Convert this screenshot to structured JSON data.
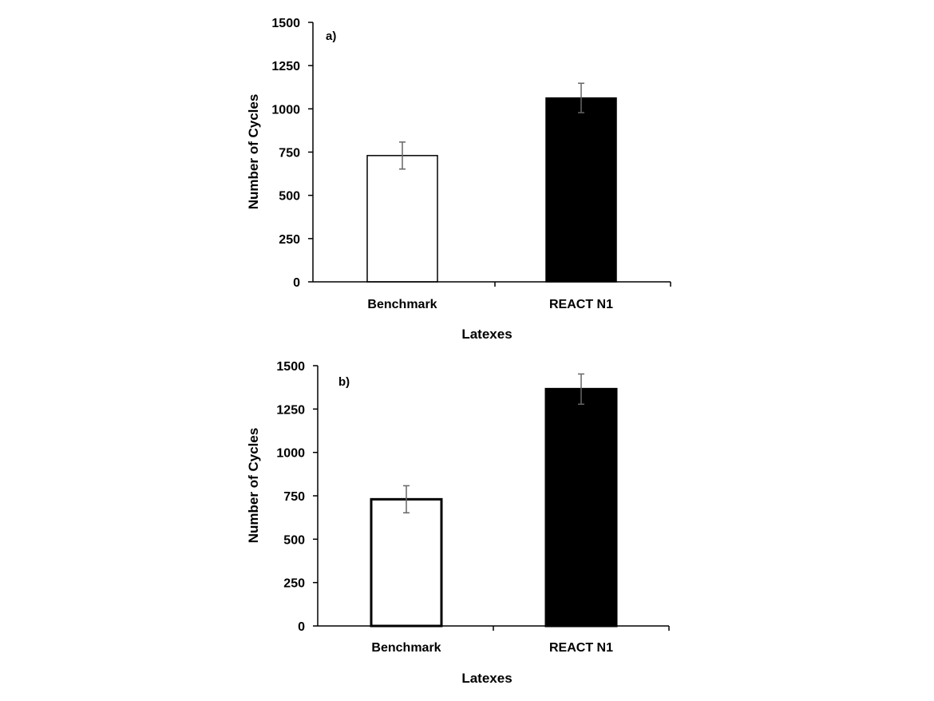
{
  "chart_data": [
    {
      "type": "bar",
      "panel_label": "a)",
      "categories": [
        "Benchmark",
        "REACT N1"
      ],
      "values": [
        730,
        1063
      ],
      "error": [
        78,
        85
      ],
      "bar_colors": [
        "#ffffff",
        "#000000"
      ],
      "bar_edge_color": "#000000",
      "error_bar_color": "#666666",
      "xlabel": "Latexes",
      "ylabel": "Number of Cycles",
      "ylim": [
        0,
        1500
      ],
      "yticks": [
        "0",
        "250",
        "500",
        "750",
        "1000",
        "1250",
        "1500"
      ],
      "grid": false,
      "legend": "none"
    },
    {
      "type": "bar",
      "panel_label": "b)",
      "categories": [
        "Benchmark",
        "REACT N1"
      ],
      "values": [
        730,
        1365
      ],
      "error": [
        78,
        87
      ],
      "bar_colors": [
        "#ffffff",
        "#000000"
      ],
      "bar_edge_color": "#000000",
      "error_bar_color": "#666666",
      "xlabel": "Latexes",
      "ylabel": "Number of Cycles",
      "ylim": [
        0,
        1500
      ],
      "yticks": [
        "0",
        "250",
        "500",
        "750",
        "1000",
        "1250",
        "1500"
      ],
      "grid": false,
      "legend": "none"
    }
  ]
}
